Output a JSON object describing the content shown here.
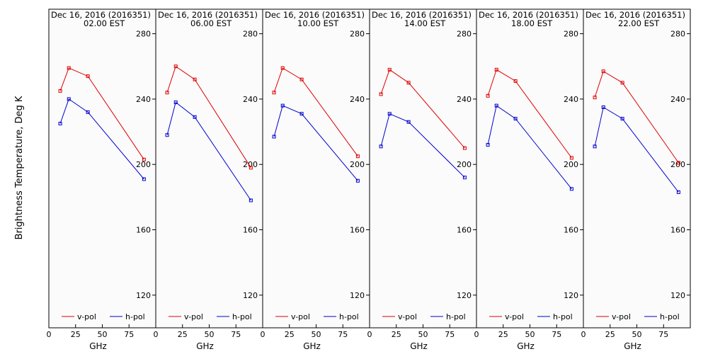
{
  "figure": {
    "ylabel": "Brightness Temperature, Deg K",
    "xlabel": "GHz",
    "colors": {
      "v_pol": "#e00000",
      "h_pol": "#0000d0",
      "frame": "#000000",
      "background": "#fbfbfb"
    }
  },
  "chart_data": [
    {
      "type": "line",
      "title": "Dec 16, 2016 (2016351)",
      "subtitle": "02.00 EST",
      "xlabel": "GHz",
      "ylabel": "Brightness Temperature, Deg K",
      "xlim": [
        0,
        100
      ],
      "ylim": [
        100,
        295
      ],
      "x_ticks": [
        "0",
        "25",
        "50",
        "75"
      ],
      "y_ticks": [
        "120",
        "160",
        "200",
        "240",
        "280"
      ],
      "grid": false,
      "legend": "bottom",
      "x": [
        10.65,
        18.7,
        36.5,
        89.0
      ],
      "series": [
        {
          "name": "v-pol",
          "color": "#e00000",
          "values": [
            245,
            259,
            254,
            203
          ]
        },
        {
          "name": "h-pol",
          "color": "#0000d0",
          "values": [
            225,
            240,
            232,
            191
          ]
        }
      ]
    },
    {
      "type": "line",
      "title": "Dec 16, 2016 (2016351)",
      "subtitle": "06.00 EST",
      "xlabel": "GHz",
      "ylabel": "",
      "xlim": [
        0,
        100
      ],
      "ylim": [
        100,
        295
      ],
      "x_ticks": [
        "0",
        "25",
        "50",
        "75"
      ],
      "y_ticks": [
        "120",
        "160",
        "200",
        "240",
        "280"
      ],
      "grid": false,
      "legend": "bottom",
      "x": [
        10.65,
        18.7,
        36.5,
        89.0
      ],
      "series": [
        {
          "name": "v-pol",
          "color": "#e00000",
          "values": [
            244,
            260,
            252,
            198
          ]
        },
        {
          "name": "h-pol",
          "color": "#0000d0",
          "values": [
            218,
            238,
            229,
            178
          ]
        }
      ]
    },
    {
      "type": "line",
      "title": "Dec 16, 2016 (2016351)",
      "subtitle": "10.00 EST",
      "xlabel": "GHz",
      "ylabel": "",
      "xlim": [
        0,
        100
      ],
      "ylim": [
        100,
        295
      ],
      "x_ticks": [
        "0",
        "25",
        "50",
        "75"
      ],
      "y_ticks": [
        "120",
        "160",
        "200",
        "240",
        "280"
      ],
      "grid": false,
      "legend": "bottom",
      "x": [
        10.65,
        18.7,
        36.5,
        89.0
      ],
      "series": [
        {
          "name": "v-pol",
          "color": "#e00000",
          "values": [
            244,
            259,
            252,
            205
          ]
        },
        {
          "name": "h-pol",
          "color": "#0000d0",
          "values": [
            217,
            236,
            231,
            190
          ]
        }
      ]
    },
    {
      "type": "line",
      "title": "Dec 16, 2016 (2016351)",
      "subtitle": "14.00 EST",
      "xlabel": "GHz",
      "ylabel": "",
      "xlim": [
        0,
        100
      ],
      "ylim": [
        100,
        295
      ],
      "x_ticks": [
        "0",
        "25",
        "50",
        "75"
      ],
      "y_ticks": [
        "120",
        "160",
        "200",
        "240",
        "280"
      ],
      "grid": false,
      "legend": "bottom",
      "x": [
        10.65,
        18.7,
        36.5,
        89.0
      ],
      "series": [
        {
          "name": "v-pol",
          "color": "#e00000",
          "values": [
            243,
            258,
            250,
            210
          ]
        },
        {
          "name": "h-pol",
          "color": "#0000d0",
          "values": [
            211,
            231,
            226,
            192
          ]
        }
      ]
    },
    {
      "type": "line",
      "title": "Dec 16, 2016 (2016351)",
      "subtitle": "18.00 EST",
      "xlabel": "GHz",
      "ylabel": "",
      "xlim": [
        0,
        100
      ],
      "ylim": [
        100,
        295
      ],
      "x_ticks": [
        "0",
        "25",
        "50",
        "75"
      ],
      "y_ticks": [
        "120",
        "160",
        "200",
        "240",
        "280"
      ],
      "grid": false,
      "legend": "bottom",
      "x": [
        10.65,
        18.7,
        36.5,
        89.0
      ],
      "series": [
        {
          "name": "v-pol",
          "color": "#e00000",
          "values": [
            242,
            258,
            251,
            204
          ]
        },
        {
          "name": "h-pol",
          "color": "#0000d0",
          "values": [
            212,
            236,
            228,
            185
          ]
        }
      ]
    },
    {
      "type": "line",
      "title": "Dec 16, 2016 (2016351)",
      "subtitle": "22.00 EST",
      "xlabel": "GHz",
      "ylabel": "",
      "xlim": [
        0,
        100
      ],
      "ylim": [
        100,
        295
      ],
      "x_ticks": [
        "0",
        "25",
        "50",
        "75"
      ],
      "y_ticks": [
        "120",
        "160",
        "200",
        "240",
        "280"
      ],
      "grid": false,
      "legend": "bottom",
      "x": [
        10.65,
        18.7,
        36.5,
        89.0
      ],
      "series": [
        {
          "name": "v-pol",
          "color": "#e00000",
          "values": [
            241,
            257,
            250,
            201
          ]
        },
        {
          "name": "h-pol",
          "color": "#0000d0",
          "values": [
            211,
            235,
            228,
            183
          ]
        }
      ]
    }
  ]
}
